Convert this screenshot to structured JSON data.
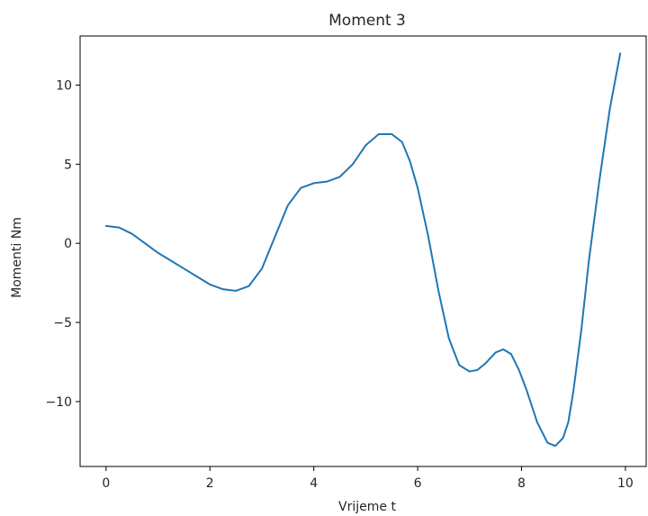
{
  "chart_data": {
    "type": "line",
    "title": "Moment 3",
    "xlabel": "Vrijeme t",
    "ylabel": "Momenti Nm",
    "xlim": [
      -0.5,
      10.4
    ],
    "ylim": [
      -14.1,
      13.1
    ],
    "xticks": [
      0,
      2,
      4,
      6,
      8,
      10
    ],
    "xtick_labels": [
      "0",
      "2",
      "4",
      "6",
      "8",
      "10"
    ],
    "yticks": [
      10,
      5,
      0,
      -5,
      -10
    ],
    "ytick_labels": [
      "10",
      "5",
      "0",
      "−5",
      "−10"
    ],
    "grid": false,
    "line_color": "#1f77b4",
    "series": [
      {
        "x": [
          0,
          0.25,
          0.5,
          0.75,
          1.0,
          1.25,
          1.5,
          1.75,
          2.0,
          2.25,
          2.5,
          2.75,
          3.0,
          3.25,
          3.5,
          3.75,
          4.0,
          4.25,
          4.5,
          4.75,
          5.0,
          5.25,
          5.5,
          5.7,
          5.85,
          6.0,
          6.2,
          6.4,
          6.6,
          6.8,
          7.0,
          7.15,
          7.3,
          7.5,
          7.65,
          7.8,
          7.95,
          8.1,
          8.3,
          8.5,
          8.65,
          8.8,
          8.9,
          9.0,
          9.15,
          9.3,
          9.5,
          9.7,
          9.9
        ],
        "y": [
          1.1,
          1.0,
          0.6,
          0.0,
          -0.6,
          -1.1,
          -1.6,
          -2.1,
          -2.6,
          -2.9,
          -3.0,
          -2.7,
          -1.6,
          0.4,
          2.4,
          3.5,
          3.8,
          3.9,
          4.2,
          5.0,
          6.2,
          6.9,
          6.9,
          6.4,
          5.2,
          3.5,
          0.5,
          -3.0,
          -6.0,
          -7.7,
          -8.1,
          -8.0,
          -7.6,
          -6.9,
          -6.7,
          -7.0,
          -8.0,
          -9.3,
          -11.3,
          -12.6,
          -12.8,
          -12.3,
          -11.3,
          -9.3,
          -5.5,
          -1.0,
          4.0,
          8.5,
          12.0
        ]
      }
    ]
  }
}
